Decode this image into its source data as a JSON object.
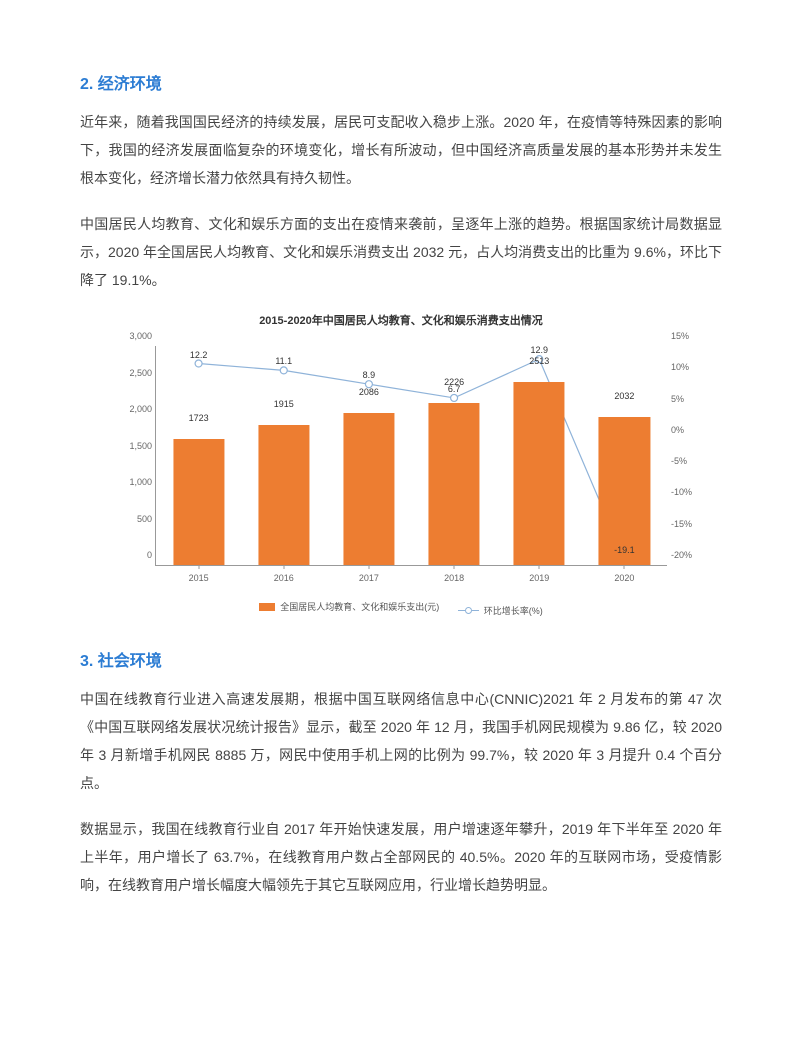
{
  "section2": {
    "heading": "2. 经济环境",
    "para1": "近年来，随着我国国民经济的持续发展，居民可支配收入稳步上涨。2020 年，在疫情等特殊因素的影响下，我国的经济发展面临复杂的环境变化，增长有所波动，但中国经济高质量发展的基本形势并未发生根本变化，经济增长潜力依然具有持久韧性。",
    "para2": "中国居民人均教育、文化和娱乐方面的支出在疫情来袭前，呈逐年上涨的趋势。根据国家统计局数据显示，2020 年全国居民人均教育、文化和娱乐消费支出 2032 元，占人均消费支出的比重为 9.6%，环比下降了 19.1%。"
  },
  "chart": {
    "title": "2015-2020年中国居民人均教育、文化和娱乐消费支出情况",
    "type": "bar+line",
    "categories": [
      "2015",
      "2016",
      "2017",
      "2018",
      "2019",
      "2020"
    ],
    "bar_values": [
      1723,
      1915,
      2086,
      2226,
      2513,
      2032
    ],
    "line_values": [
      12.2,
      11.1,
      8.9,
      6.7,
      12.9,
      -19.1
    ],
    "bar_color": "#ed7d31",
    "line_color": "#8fb3d9",
    "marker_fill": "#ffffff",
    "y_left_max": 3000,
    "y_left_min": 0,
    "y_left_step": 500,
    "y_left_ticks": [
      "0",
      "500",
      "1,000",
      "1,500",
      "2,000",
      "2,500",
      "3,000"
    ],
    "y_right_max": 15,
    "y_right_min": -20,
    "y_right_step": 5,
    "y_right_ticks": [
      "-20%",
      "-15%",
      "-10%",
      "-5%",
      "0%",
      "5%",
      "10%",
      "15%"
    ],
    "axis_color": "#999999",
    "label_fontsize": 9,
    "title_fontsize": 11,
    "bar_width_pct": 10,
    "legend_bar": "全国居民人均教育、文化和娱乐支出(元)",
    "legend_line": "环比增长率(%)",
    "background_color": "#ffffff"
  },
  "section3": {
    "heading": "3. 社会环境",
    "para1": "中国在线教育行业进入高速发展期，根据中国互联网络信息中心(CNNIC)2021 年 2 月发布的第 47 次《中国互联网络发展状况统计报告》显示，截至 2020 年 12 月，我国手机网民规模为 9.86 亿，较 2020 年 3 月新增手机网民 8885 万，网民中使用手机上网的比例为 99.7%，较 2020 年 3 月提升 0.4 个百分点。",
    "para2": "数据显示，我国在线教育行业自 2017 年开始快速发展，用户增速逐年攀升，2019 年下半年至 2020 年上半年，用户增长了 63.7%，在线教育用户数占全部网民的 40.5%。2020 年的互联网市场，受疫情影响，在线教育用户增长幅度大幅领先于其它互联网应用，行业增长趋势明显。"
  }
}
